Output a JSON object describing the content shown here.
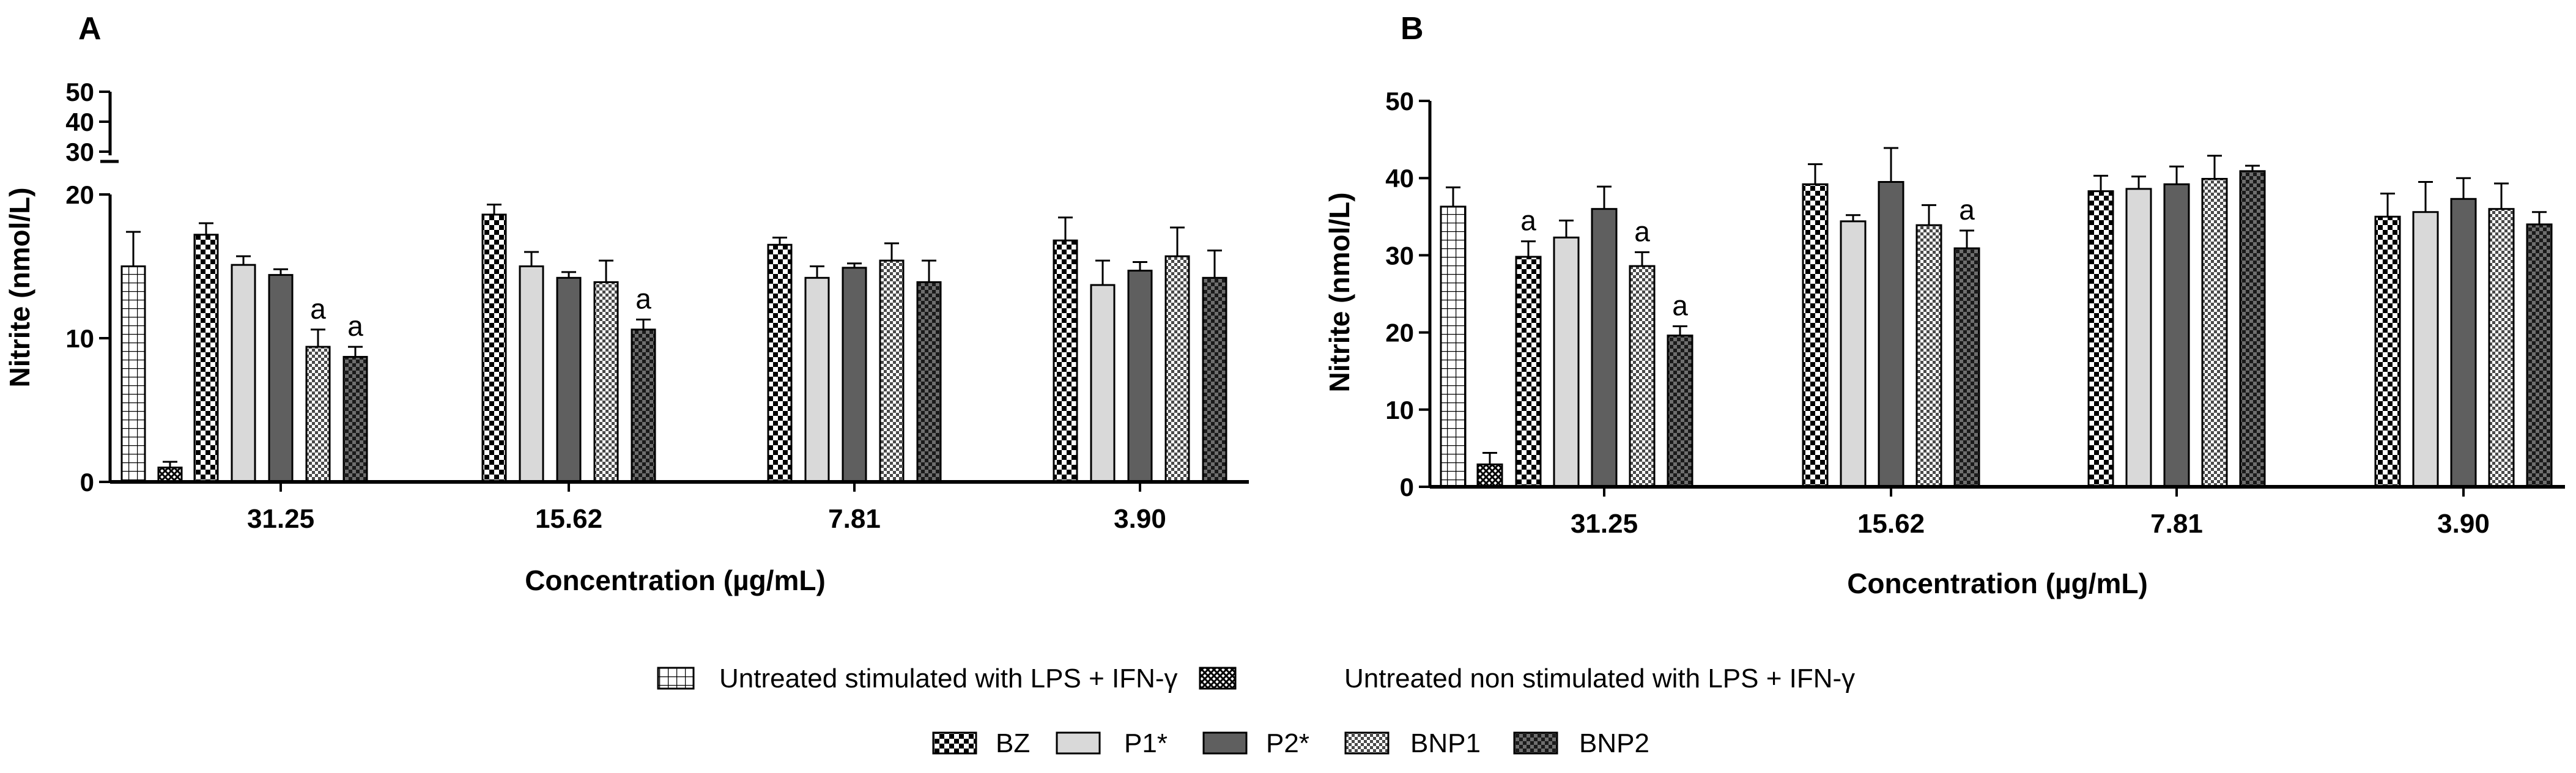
{
  "chart_data": [
    {
      "panel_label": "A",
      "type": "bar",
      "xlabel": "Concentration (µg/mL)",
      "ylabel": "Nitrite (nmol/L)",
      "categories": [
        "31.25",
        "15.62",
        "7.81",
        "3.90"
      ],
      "broken_axis": true,
      "ylim_lower": [
        0,
        20
      ],
      "yticks_lower": [
        "0",
        "10",
        "20"
      ],
      "ylim_upper": [
        30,
        50
      ],
      "yticks_upper": [
        "30",
        "40",
        "50"
      ],
      "controls": [
        {
          "name": "Untreated stimulated with LPS + IFN-γ",
          "value": 15.0,
          "error": 2.4,
          "annotation": ""
        },
        {
          "name": "Untreated non stimulated with LPS + IFN-γ",
          "value": 1.0,
          "error": 0.4,
          "annotation": ""
        }
      ],
      "series": [
        {
          "name": "BZ",
          "values": [
            17.2,
            18.6,
            16.5,
            16.8
          ],
          "errors": [
            0.8,
            0.7,
            0.5,
            1.6
          ],
          "annotations": [
            "",
            "",
            "",
            ""
          ]
        },
        {
          "name": "P1*",
          "values": [
            15.1,
            15.0,
            14.2,
            13.7
          ],
          "errors": [
            0.6,
            1.0,
            0.8,
            1.7
          ],
          "annotations": [
            "",
            "",
            "",
            ""
          ]
        },
        {
          "name": "P2*",
          "values": [
            14.4,
            14.2,
            14.9,
            14.7
          ],
          "errors": [
            0.4,
            0.4,
            0.3,
            0.6
          ],
          "annotations": [
            "",
            "",
            "",
            ""
          ]
        },
        {
          "name": "BNP1",
          "values": [
            9.4,
            13.9,
            15.4,
            15.7
          ],
          "errors": [
            1.2,
            1.5,
            1.2,
            2.0
          ],
          "annotations": [
            "a",
            "",
            "",
            ""
          ]
        },
        {
          "name": "BNP2",
          "values": [
            8.7,
            10.6,
            13.9,
            14.2
          ],
          "errors": [
            0.7,
            0.7,
            1.5,
            1.9
          ],
          "annotations": [
            "a",
            "a",
            "",
            ""
          ]
        }
      ]
    },
    {
      "panel_label": "B",
      "type": "bar",
      "xlabel": "Concentration (µg/mL)",
      "ylabel": "Nitrite (nmol/L)",
      "categories": [
        "31.25",
        "15.62",
        "7.81",
        "3.90"
      ],
      "broken_axis": false,
      "ylim": [
        0,
        50
      ],
      "yticks": [
        "0",
        "10",
        "20",
        "30",
        "40",
        "50"
      ],
      "controls": [
        {
          "name": "Untreated stimulated with LPS + IFN-γ",
          "value": 36.3,
          "error": 2.5,
          "annotation": ""
        },
        {
          "name": "Untreated non stimulated with LPS + IFN-γ",
          "value": 2.9,
          "error": 1.5,
          "annotation": ""
        }
      ],
      "series": [
        {
          "name": "BZ",
          "values": [
            29.8,
            39.2,
            38.3,
            35.0
          ],
          "errors": [
            2.0,
            2.6,
            2.0,
            3.0
          ],
          "annotations": [
            "a",
            "",
            "",
            ""
          ]
        },
        {
          "name": "P1*",
          "values": [
            32.3,
            34.4,
            38.6,
            35.6
          ],
          "errors": [
            2.2,
            0.8,
            1.6,
            3.9
          ],
          "annotations": [
            "",
            "",
            "",
            ""
          ]
        },
        {
          "name": "P2*",
          "values": [
            36.0,
            39.5,
            39.2,
            37.3
          ],
          "errors": [
            2.9,
            4.4,
            2.3,
            2.7
          ],
          "annotations": [
            "",
            "",
            "",
            ""
          ]
        },
        {
          "name": "BNP1",
          "values": [
            28.6,
            33.9,
            39.9,
            36.0
          ],
          "errors": [
            1.8,
            2.6,
            3.0,
            3.3
          ],
          "annotations": [
            "a",
            "",
            "",
            ""
          ]
        },
        {
          "name": "BNP2",
          "values": [
            19.6,
            30.9,
            40.9,
            34.0
          ],
          "errors": [
            1.2,
            2.3,
            0.7,
            1.6
          ],
          "annotations": [
            "a",
            "a",
            "",
            ""
          ]
        }
      ]
    }
  ],
  "legend": {
    "controls": [
      {
        "label": "Untreated stimulated with LPS + IFN-γ",
        "icon": "grid-pattern-icon"
      },
      {
        "label": "Untreated non stimulated with LPS + IFN-γ",
        "icon": "cross-pattern-icon"
      }
    ],
    "series": [
      {
        "label": "BZ",
        "icon": "checker-pattern-icon"
      },
      {
        "label": "P1*",
        "icon": "light-gray-fill-icon"
      },
      {
        "label": "P2*",
        "icon": "dark-gray-fill-icon"
      },
      {
        "label": "BNP1",
        "icon": "fine-checker-pattern-icon"
      },
      {
        "label": "BNP2",
        "icon": "dark-checker-pattern-icon"
      }
    ]
  },
  "colors": {
    "axis": "#000000",
    "p1_fill": "#d9d9d9",
    "p2_fill": "#5f5f5f",
    "text": "#000000"
  }
}
